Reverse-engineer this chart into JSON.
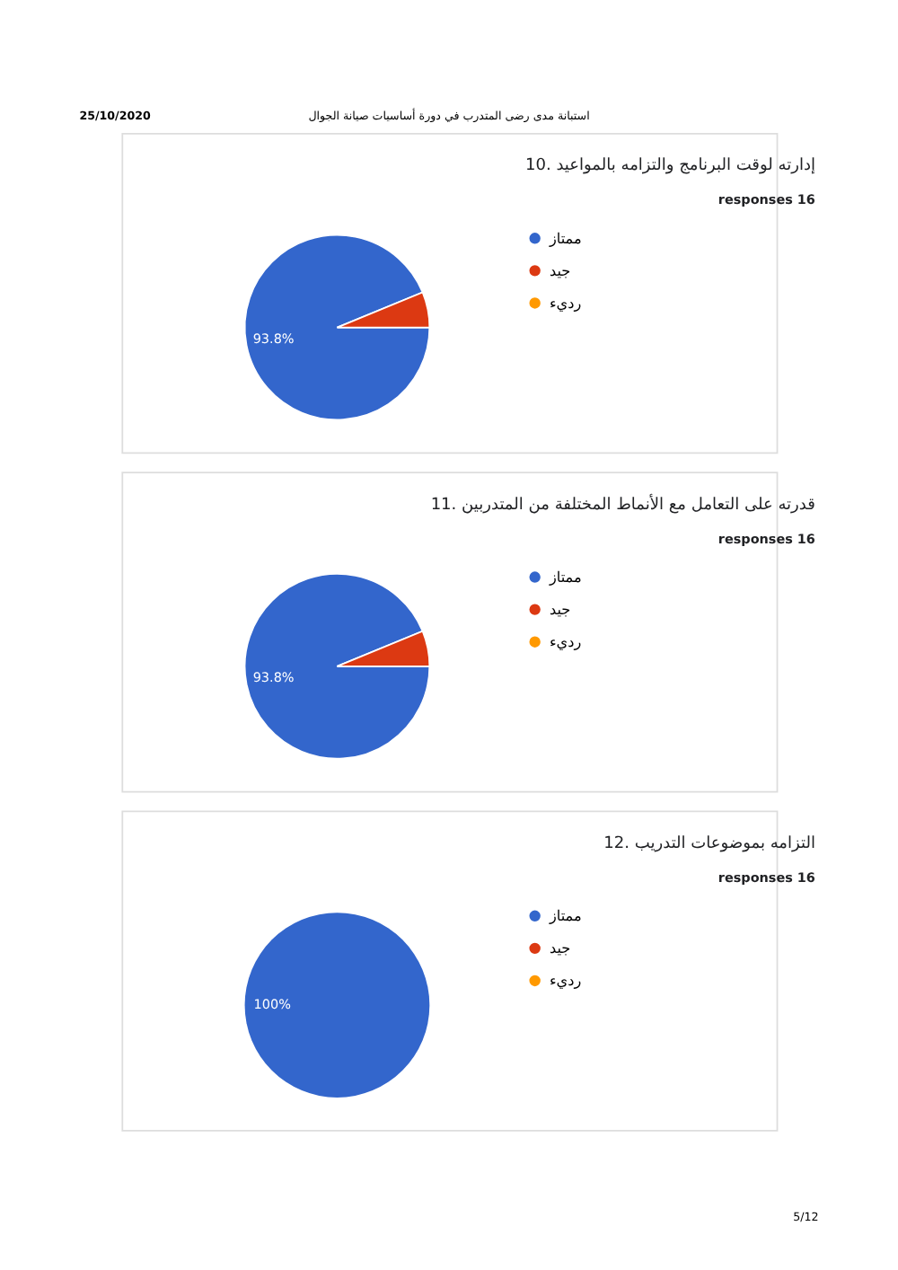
{
  "chart_data": [
    {
      "type": "pie",
      "title": "10. إدارته لوقت البرنامج والتزامه بالمواعيد",
      "subtitle": "responses 16",
      "categories": [
        "ممتاز",
        "جيد",
        "رديء"
      ],
      "values": [
        93.8,
        6.2,
        0
      ],
      "colors": [
        "#3366cc",
        "#dc3912",
        "#ff9900"
      ],
      "value_labels": [
        "93.8%",
        null,
        null
      ],
      "legend": "right",
      "annotations": [
        "25/10/2020",
        "استبانة مدى رضى المتدرب في دورة أساسيات صيانة الجوال"
      ]
    },
    {
      "type": "pie",
      "title": "11. قدرته على التعامل مع الأنماط المختلفة من المتدربين",
      "subtitle": "responses 16",
      "categories": [
        "ممتاز",
        "جيد",
        "رديء"
      ],
      "values": [
        93.8,
        6.2,
        0
      ],
      "colors": [
        "#3366cc",
        "#dc3912",
        "#ff9900"
      ],
      "value_labels": [
        "93.8%",
        null,
        null
      ],
      "legend": "right"
    },
    {
      "type": "pie",
      "title": "12. التزامه بموضوعات التدريب",
      "subtitle": "responses 16",
      "categories": [
        "ممتاز",
        "جيد",
        "رديء"
      ],
      "values": [
        100,
        0,
        0
      ],
      "colors": [
        "#3366cc",
        "#dc3912",
        "#ff9900"
      ],
      "value_labels": [
        "100%",
        null,
        null
      ],
      "legend": "right",
      "annotations": [
        "5/12"
      ]
    }
  ]
}
